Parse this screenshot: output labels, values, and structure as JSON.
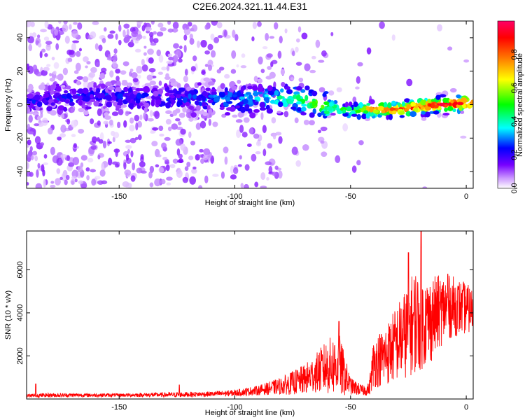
{
  "figure": {
    "title": "C2E6.2024.321.11.44.E31"
  },
  "chart_data": [
    {
      "type": "heatmap",
      "xlabel": "Height of straight line (km)",
      "ylabel": "Frequency (Hz)",
      "xlim": [
        -190,
        3
      ],
      "ylim": [
        -50,
        50
      ],
      "xticks": [
        -150,
        -100,
        -50,
        0
      ],
      "yticks": [
        -40,
        -20,
        0,
        20,
        40
      ],
      "colorbar": {
        "label": "Normalized spectral amplitude",
        "range": [
          0,
          1
        ],
        "ticks": [
          0.0,
          0.2,
          0.4,
          0.6,
          0.8
        ],
        "tick_labels": [
          "0.0",
          "0.2",
          "0.4",
          "0.6",
          "0.8"
        ],
        "colormap": [
          "#ffffff",
          "#cc99ff",
          "#7700ff",
          "#0000ff",
          "#00ffff",
          "#00ff00",
          "#ffff00",
          "#ff7700",
          "#ff0000",
          "#ff0066"
        ]
      },
      "ridge": {
        "x": [
          -190,
          -160,
          -130,
          -100,
          -90,
          -80,
          -70,
          -60,
          -50,
          -45,
          -40,
          -30,
          -20,
          -10,
          0,
          3
        ],
        "y": [
          3,
          5,
          4,
          3,
          4,
          4,
          2,
          -1,
          -4,
          -3,
          -3,
          -3,
          -1,
          0,
          1,
          1
        ],
        "amplitude": [
          0.2,
          0.22,
          0.22,
          0.3,
          0.35,
          0.42,
          0.5,
          0.55,
          0.45,
          0.6,
          0.8,
          0.85,
          0.9,
          0.95,
          0.9,
          0.85
        ]
      }
    },
    {
      "type": "line",
      "xlabel": "Height of straight line (km)",
      "ylabel": "SNR (10 * v/v)",
      "xlim": [
        -190,
        3
      ],
      "ylim": [
        0,
        7800
      ],
      "xticks": [
        -150,
        -100,
        -50,
        0
      ],
      "yticks": [
        2000,
        4000,
        6000
      ],
      "color": "#ff0000",
      "envelope": {
        "x": [
          -190,
          -180,
          -150,
          -125,
          -110,
          -100,
          -90,
          -80,
          -70,
          -65,
          -60,
          -55,
          -50,
          -45,
          -42,
          -40,
          -35,
          -30,
          -25,
          -22,
          -20,
          -15,
          -10,
          -5,
          0,
          3
        ],
        "mean": [
          150,
          180,
          180,
          200,
          230,
          280,
          400,
          600,
          900,
          1200,
          1500,
          1600,
          600,
          400,
          450,
          1700,
          2000,
          2600,
          3200,
          3700,
          3500,
          3700,
          4200,
          4300,
          4200,
          4100
        ],
        "spread": [
          80,
          100,
          80,
          120,
          120,
          150,
          220,
          400,
          700,
          900,
          1300,
          1500,
          400,
          250,
          300,
          1200,
          1400,
          1800,
          2200,
          2500,
          2200,
          2000,
          1600,
          1400,
          1200,
          1000
        ]
      },
      "peaks": [
        {
          "x": -186,
          "y": 700
        },
        {
          "x": -124,
          "y": 650
        },
        {
          "x": -55,
          "y": 3600
        },
        {
          "x": -25,
          "y": 6800
        },
        {
          "x": -19.5,
          "y": 7800
        },
        {
          "x": -8,
          "y": 5800
        },
        {
          "x": -2,
          "y": 4900
        }
      ]
    }
  ]
}
